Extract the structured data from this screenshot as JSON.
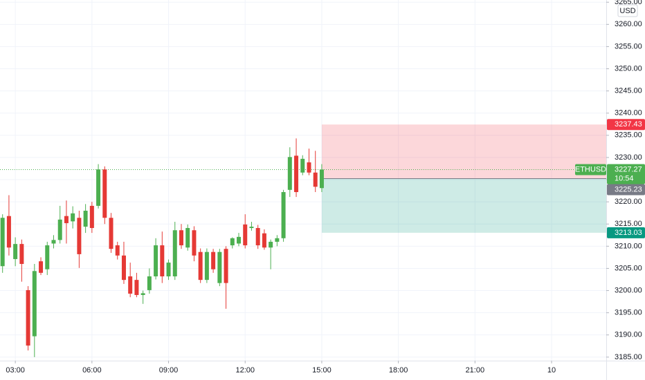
{
  "chart_data": {
    "type": "candlestick",
    "currency": "USD",
    "symbol": "ETHUSD",
    "countdown": "10:54",
    "x": [
      2.5,
      2.75,
      3,
      3.25,
      3.5,
      3.75,
      4,
      4.25,
      4.5,
      4.75,
      5,
      5.25,
      5.5,
      5.75,
      6,
      6.25,
      6.5,
      6.75,
      7,
      7.25,
      7.5,
      7.75,
      8,
      8.25,
      8.5,
      8.75,
      9,
      9.25,
      9.5,
      9.75,
      10,
      10.25,
      10.5,
      10.75,
      11,
      11.25,
      11.5,
      11.75,
      12,
      12.25,
      12.5,
      12.75,
      13,
      13.25,
      13.5,
      13.75,
      14,
      14.25,
      14.5,
      14.75,
      15
    ],
    "open": [
      3205.5,
      3216.8,
      3207.1,
      3210.5,
      3200.1,
      3189.7,
      3206.6,
      3204.8,
      3210.6,
      3211.4,
      3216.8,
      3215.6,
      3216.4,
      3214.4,
      3219.1,
      3219.1,
      3227.3,
      3216.4,
      3210.2,
      3207.9,
      3203.2,
      3202.4,
      3199.0,
      3200.1,
      3203.2,
      3210.2,
      3203.2,
      3203.2,
      3213.6,
      3209.7,
      3213.6,
      3208.7,
      3202.4,
      3208.7,
      3201.7,
      3209.4,
      3210.2,
      3210.6,
      3214.9,
      3214.1,
      3214.1,
      3212.9,
      3209.7,
      3211.0,
      3211.8,
      3222.7,
      3230.4,
      3226.6,
      3228.9,
      3226.6,
      3223.1
    ],
    "high": [
      3217.2,
      3221.5,
      3212.0,
      3211.5,
      3201.0,
      3206.0,
      3207.5,
      3211.0,
      3212.5,
      3219.1,
      3220.3,
      3219.0,
      3218.0,
      3219.5,
      3220.0,
      3228.5,
      3228.0,
      3217.5,
      3211.0,
      3211.0,
      3206.3,
      3204.0,
      3200.0,
      3205.0,
      3211.8,
      3213.3,
      3207.0,
      3215.5,
      3215.0,
      3214.9,
      3214.5,
      3209.5,
      3209.5,
      3209.4,
      3209.4,
      3210.0,
      3212.0,
      3213.0,
      3217.2,
      3215.5,
      3214.8,
      3213.8,
      3211.5,
      3212.5,
      3222.7,
      3232.3,
      3234.3,
      3230.5,
      3232.0,
      3231.5,
      3228.5
    ],
    "low": [
      3204.0,
      3207.9,
      3205.5,
      3202.0,
      3186.5,
      3185.0,
      3203.5,
      3203.5,
      3209.5,
      3210.6,
      3210.6,
      3214.0,
      3205.1,
      3213.0,
      3213.0,
      3218.5,
      3215.0,
      3208.5,
      3207.0,
      3201.5,
      3198.5,
      3198.5,
      3197.0,
      3199.3,
      3202.5,
      3201.7,
      3202.4,
      3202.4,
      3209.4,
      3209.0,
      3206.6,
      3201.7,
      3201.7,
      3204.0,
      3201.0,
      3195.9,
      3209.5,
      3210.0,
      3209.5,
      3213.5,
      3209.4,
      3209.2,
      3204.8,
      3210.0,
      3211.0,
      3221.1,
      3221.1,
      3226.0,
      3226.0,
      3222.2,
      3222.2
    ],
    "close": [
      3216.4,
      3209.7,
      3210.5,
      3206.0,
      3187.6,
      3204.4,
      3204.0,
      3210.2,
      3211.4,
      3216.0,
      3215.2,
      3217.4,
      3208.2,
      3218.0,
      3214.1,
      3227.3,
      3216.4,
      3209.4,
      3207.9,
      3202.4,
      3199.3,
      3199.0,
      3199.4,
      3203.2,
      3210.2,
      3203.2,
      3206.3,
      3213.6,
      3210.2,
      3214.1,
      3207.9,
      3202.4,
      3208.7,
      3204.8,
      3208.7,
      3201.7,
      3211.8,
      3212.1,
      3210.2,
      3214.4,
      3210.2,
      3209.7,
      3211.0,
      3211.8,
      3222.2,
      3230.1,
      3222.2,
      3229.7,
      3226.6,
      3223.4,
      3227.27
    ],
    "up_color": "#4caf50",
    "down_color": "#e53935",
    "last_price": 3227.27,
    "position": {
      "stop": 3237.43,
      "entry": 3225.23,
      "target": 3213.03,
      "stop_color": "#f23645",
      "target_color": "#089981",
      "entry_color": "#787b86"
    },
    "xlim": [
      2.4,
      26.14
    ],
    "ylim": [
      3184.2,
      3265.5
    ],
    "xticks": [
      {
        "value": 3,
        "label": "03:00"
      },
      {
        "value": 6,
        "label": "06:00"
      },
      {
        "value": 9,
        "label": "09:00"
      },
      {
        "value": 12,
        "label": "12:00"
      },
      {
        "value": 15,
        "label": "15:00"
      },
      {
        "value": 18,
        "label": "18:00"
      },
      {
        "value": 21,
        "label": "21:00"
      },
      {
        "value": 24,
        "label": "10"
      }
    ],
    "yticks": [
      {
        "value": 3185,
        "label": "3185.00"
      },
      {
        "value": 3190,
        "label": "3190.00"
      },
      {
        "value": 3195,
        "label": "3195.00"
      },
      {
        "value": 3200,
        "label": "3200.00"
      },
      {
        "value": 3205,
        "label": "3205.00"
      },
      {
        "value": 3210,
        "label": "3210.00"
      },
      {
        "value": 3215,
        "label": "3215.00"
      },
      {
        "value": 3220,
        "label": "3220.00"
      },
      {
        "value": 3225,
        "label": "3225.00"
      },
      {
        "value": 3230,
        "label": "3230.00"
      },
      {
        "value": 3235,
        "label": "3235.00"
      },
      {
        "value": 3240,
        "label": "3240.00"
      },
      {
        "value": 3245,
        "label": "3245.00"
      },
      {
        "value": 3250,
        "label": "3250.00"
      },
      {
        "value": 3255,
        "label": "3255.00"
      },
      {
        "value": 3260,
        "label": "3260.00"
      },
      {
        "value": 3265,
        "label": "3265.00"
      }
    ],
    "grid": true
  }
}
